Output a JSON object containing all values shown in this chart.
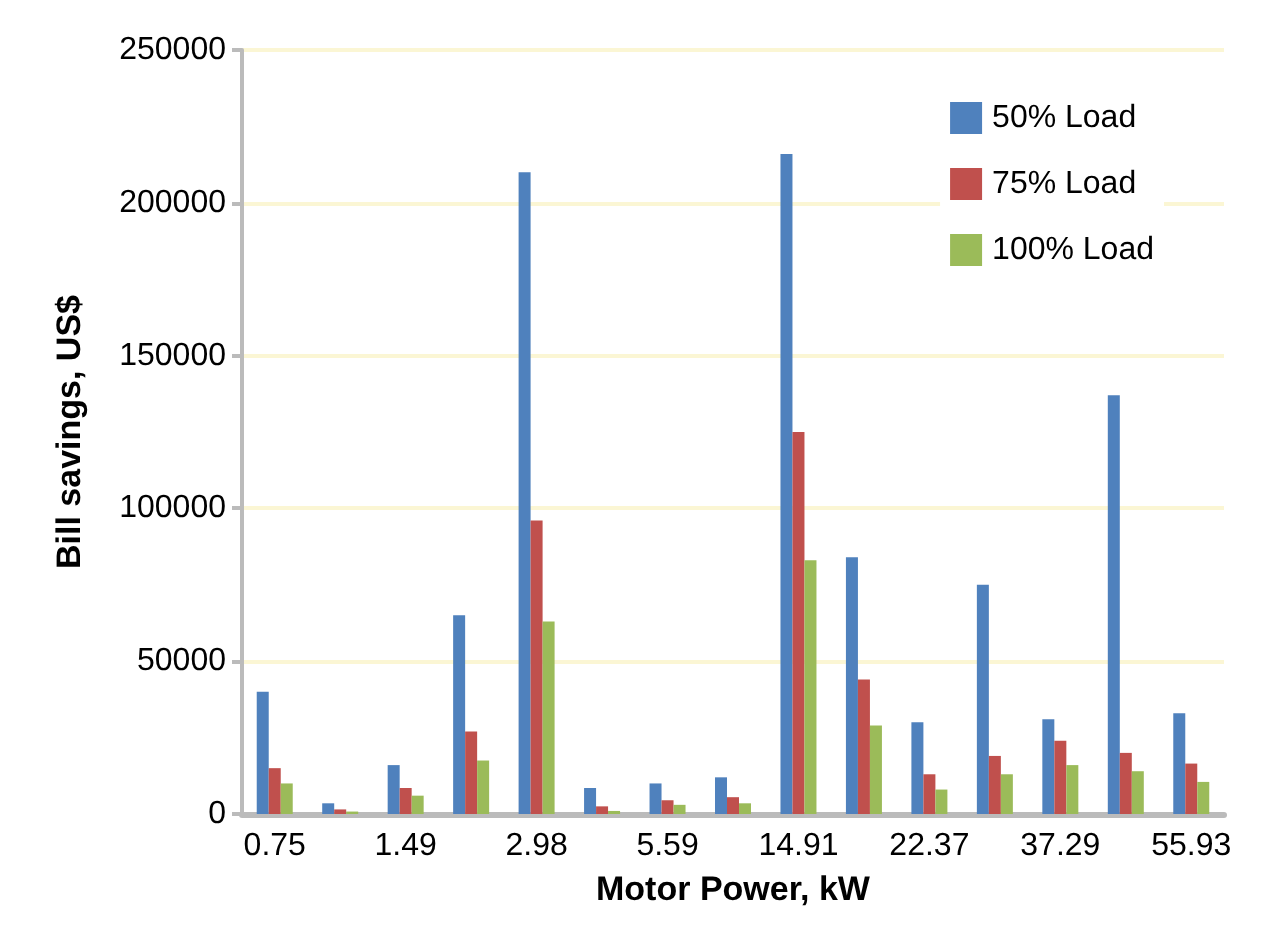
{
  "chart_data": {
    "type": "bar",
    "xlabel": "Motor Power, kW",
    "ylabel": "Bill savings, US$",
    "categories": [
      "0.75",
      null,
      "1.49",
      null,
      "2.98",
      null,
      "5.59",
      null,
      "14.91",
      null,
      "22.37",
      null,
      "37.29",
      null,
      "55.93"
    ],
    "series": [
      {
        "name": "50% Load",
        "color": "#4f81bd",
        "values": [
          40000,
          3500,
          16000,
          65000,
          210000,
          8500,
          10000,
          12000,
          216000,
          84000,
          30000,
          75000,
          31000,
          137000,
          33000
        ]
      },
      {
        "name": "75% Load",
        "color": "#c0504d",
        "values": [
          15000,
          1500,
          8500,
          27000,
          96000,
          2500,
          4500,
          5500,
          125000,
          44000,
          13000,
          19000,
          24000,
          20000,
          16500
        ]
      },
      {
        "name": "100% Load",
        "color": "#9bbb59",
        "values": [
          10000,
          800,
          6000,
          17500,
          63000,
          1000,
          3000,
          3500,
          83000,
          29000,
          8000,
          13000,
          16000,
          14000,
          10500
        ]
      }
    ],
    "ylim": [
      0,
      250000
    ],
    "yticks": [
      0,
      50000,
      100000,
      150000,
      200000,
      250000
    ],
    "grid": "y",
    "legend": "top right"
  }
}
